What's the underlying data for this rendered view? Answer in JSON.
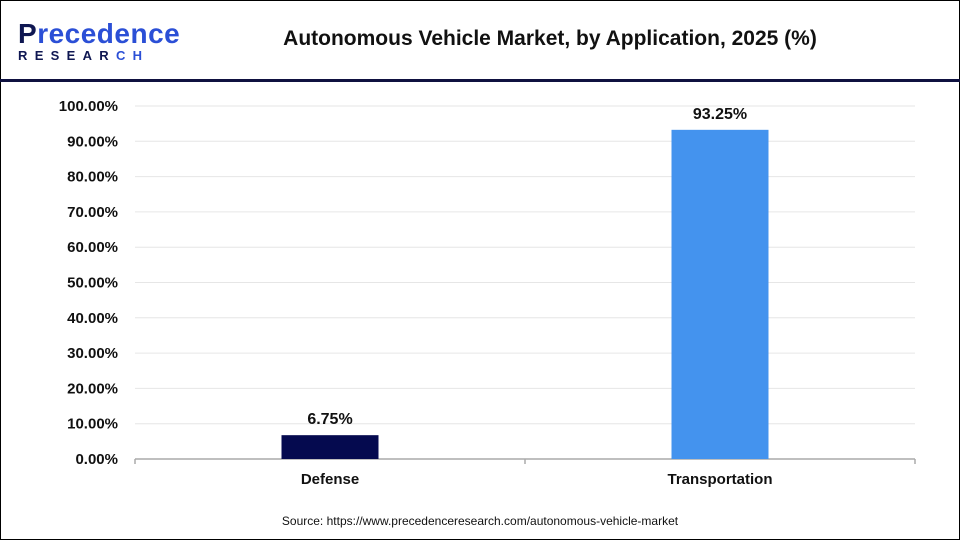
{
  "logo": {
    "text_top": "Precedence",
    "text_bottom": "RESEARCH"
  },
  "source": "Source: https://www.precedenceresearch.com/autonomous-vehicle-market",
  "chart_data": {
    "type": "bar",
    "title": "Autonomous Vehicle Market, by Application, 2025 (%)",
    "xlabel": "",
    "ylabel": "",
    "categories": [
      "Defense",
      "Transportation"
    ],
    "values": [
      6.75,
      93.25
    ],
    "data_labels": [
      "6.75%",
      "93.25%"
    ],
    "colors": [
      "#050a4f",
      "#4493ee"
    ],
    "ylim": [
      0,
      100
    ],
    "yticks": [
      0,
      10,
      20,
      30,
      40,
      50,
      60,
      70,
      80,
      90,
      100
    ],
    "ytick_labels": [
      "0.00%",
      "10.00%",
      "20.00%",
      "30.00%",
      "40.00%",
      "50.00%",
      "60.00%",
      "70.00%",
      "80.00%",
      "90.00%",
      "100.00%"
    ],
    "grid": true,
    "legend": "none"
  }
}
